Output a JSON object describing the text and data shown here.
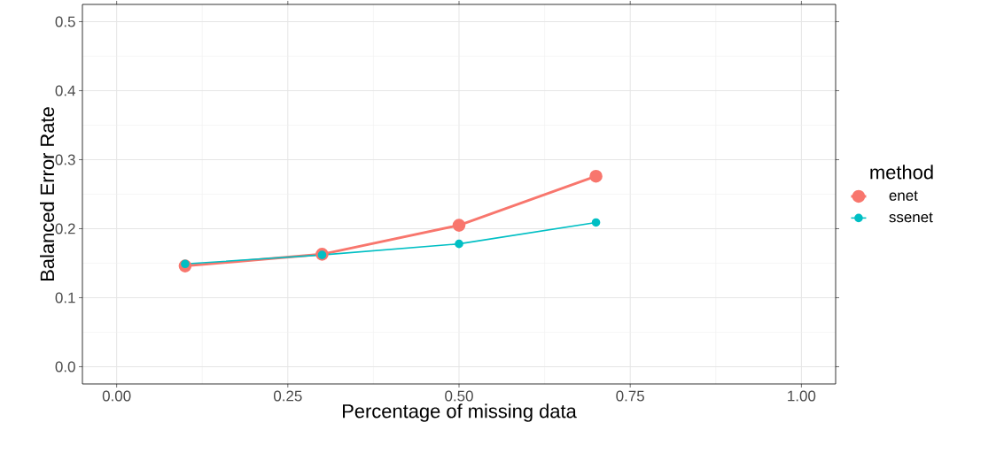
{
  "chart_data": {
    "type": "line",
    "xlabel": "Percentage of missing data",
    "ylabel": "Balanced Error Rate",
    "legend_title": "method",
    "x": [
      0.1,
      0.3,
      0.5,
      0.7
    ],
    "series": [
      {
        "name": "enet",
        "color": "#f8766d",
        "values": [
          0.146,
          0.163,
          0.205,
          0.276
        ]
      },
      {
        "name": "ssenet",
        "color": "#00bfc4",
        "values": [
          0.149,
          0.162,
          0.178,
          0.209
        ]
      }
    ],
    "xlim": [
      -0.05,
      1.05
    ],
    "xticks": [
      {
        "value": 0,
        "label": "0.00"
      },
      {
        "value": 0.25,
        "label": "0.25"
      },
      {
        "value": 0.5,
        "label": "0.50"
      },
      {
        "value": 0.75,
        "label": "0.75"
      },
      {
        "value": 1,
        "label": "1.00"
      }
    ],
    "ylim": [
      -0.025,
      0.525
    ],
    "yticks": [
      {
        "value": 0,
        "label": "0.0"
      },
      {
        "value": 0.1,
        "label": "0.1"
      },
      {
        "value": 0.2,
        "label": "0.2"
      },
      {
        "value": 0.3,
        "label": "0.3"
      },
      {
        "value": 0.4,
        "label": "0.4"
      },
      {
        "value": 0.5,
        "label": "0.5"
      }
    ],
    "grid": true,
    "legend": "right",
    "marker": "circle",
    "line_style": "solid"
  }
}
